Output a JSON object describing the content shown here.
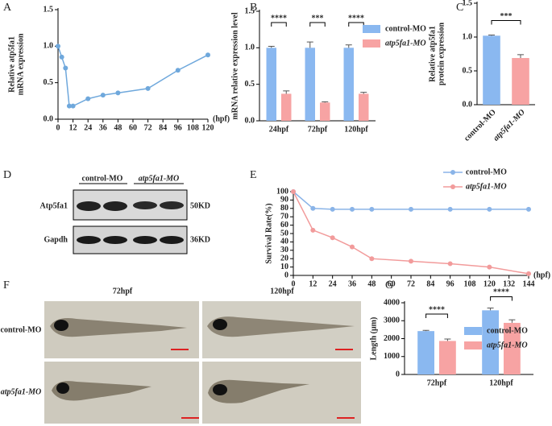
{
  "panel_labels": [
    "A",
    "B",
    "C",
    "D",
    "E",
    "F",
    "G"
  ],
  "chart_data": [
    {
      "type": "line",
      "x": [
        0,
        3,
        6,
        9,
        12,
        24,
        36,
        48,
        72,
        96,
        120
      ],
      "values": [
        1.0,
        0.85,
        0.7,
        0.18,
        0.18,
        0.28,
        0.33,
        0.36,
        0.42,
        0.67,
        0.88
      ],
      "color": "#6fa8dc",
      "xlim": [
        0,
        120
      ],
      "xticks": [
        0,
        12,
        24,
        36,
        48,
        60,
        72,
        84,
        96,
        108,
        120
      ],
      "xlabel": "(hpf)",
      "ylim": [
        0,
        1.5
      ],
      "yticks": [
        {
          "value": 0,
          "label": "0.0"
        },
        0.5,
        {
          "value": 1,
          "label": "1.0"
        },
        1.5
      ],
      "ylabel": [
        "Relative atp5fa1",
        "mRNA expression"
      ]
    },
    {
      "type": "groupedbar",
      "categories": [
        "24hpf",
        "72hpf",
        "120hpf"
      ],
      "series": [
        {
          "name": "control-MO",
          "color": "#8ab8f0",
          "values": [
            1.0,
            1.0,
            1.0
          ],
          "errors": [
            0.02,
            0.08,
            0.04
          ]
        },
        {
          "name": "atp5fa1-MO",
          "color": "#f7a3a3",
          "values": [
            0.37,
            0.25,
            0.37
          ],
          "errors": [
            0.04,
            0.01,
            0.02
          ]
        }
      ],
      "annotations": [
        "****",
        "***",
        "****"
      ],
      "ylim": [
        0,
        1.5
      ],
      "yticks": [
        {
          "value": 0,
          "label": "0.0"
        },
        0.5,
        {
          "value": 1,
          "label": "1.0"
        },
        1.5
      ],
      "ylabel": [
        "mRNA relative expression level"
      ]
    },
    {
      "type": "bar",
      "categories": [
        "control-MO",
        "atp5fa1-MO"
      ],
      "values": [
        1.02,
        0.69
      ],
      "errors": [
        0.01,
        0.05
      ],
      "colors": [
        "#8ab8f0",
        "#f7a3a3"
      ],
      "annotations": [
        "***"
      ],
      "ylim": [
        0,
        1.5
      ],
      "yticks": [
        {
          "value": 0,
          "label": "0.0"
        },
        0.5,
        {
          "value": 1,
          "label": "1.0"
        },
        1.5
      ],
      "ylabel": [
        "Relative atp5fa1",
        "protein expression"
      ]
    },
    {
      "type": "line",
      "x": [
        0,
        12,
        24,
        36,
        48,
        72,
        96,
        120,
        144
      ],
      "series": [
        {
          "name": "control-MO",
          "color": "#8ab4e8",
          "values": [
            100,
            80,
            79,
            79,
            79,
            79,
            79,
            79,
            79
          ]
        },
        {
          "name": "atp5fa1-MO",
          "color": "#f29b9b",
          "values": [
            100,
            54,
            45,
            34,
            20,
            17,
            14,
            10,
            2
          ]
        }
      ],
      "xlim": [
        0,
        144
      ],
      "xticks": [
        0,
        12,
        24,
        36,
        48,
        60,
        72,
        84,
        96,
        108,
        120,
        132,
        144
      ],
      "xlabel": "(hpf)",
      "ylim": [
        0,
        100
      ],
      "yticks": [
        0,
        10,
        20,
        30,
        40,
        50,
        60,
        70,
        80,
        90,
        100
      ],
      "ylabel": [
        "Survival Rate(%)"
      ]
    },
    {
      "type": "groupedbar",
      "categories": [
        "72hpf",
        "120hpf"
      ],
      "series": [
        {
          "name": "control-MO",
          "color": "#8ab8f0",
          "values": [
            2420,
            3580
          ],
          "errors": [
            40,
            130
          ]
        },
        {
          "name": "atp5fa1-MO",
          "color": "#f7a3a3",
          "values": [
            1870,
            2880
          ],
          "errors": [
            110,
            170
          ]
        }
      ],
      "annotations": [
        "****",
        "****"
      ],
      "ylim": [
        0,
        4000
      ],
      "yticks": [
        0,
        1000,
        2000,
        3000,
        4000
      ],
      "ylabel": [
        "Length (μm)"
      ]
    }
  ],
  "blot": {
    "groups": [
      "control-MO",
      "atp5fa1-MO"
    ],
    "rows": [
      {
        "protein": "Atp5fa1",
        "size": "50KD"
      },
      {
        "protein": "Gapdh",
        "size": "36KD"
      }
    ]
  },
  "images": {
    "columns": [
      "72hpf",
      "120hpf"
    ],
    "rows": [
      "control-MO",
      "atp5fa1-MO"
    ]
  }
}
